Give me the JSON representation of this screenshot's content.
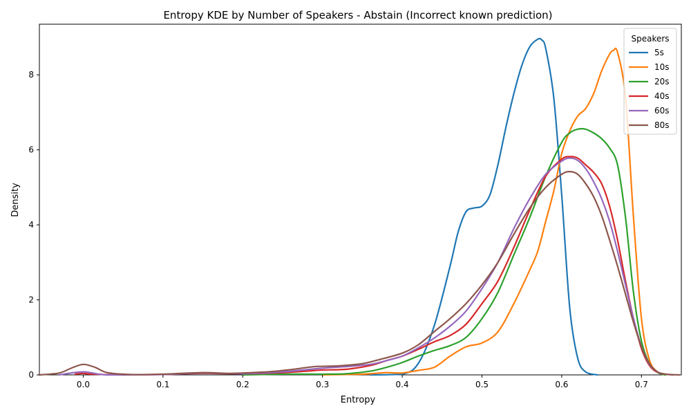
{
  "chart_data": {
    "type": "line",
    "title": "Entropy KDE by Number of Speakers - Abstain (Incorrect known prediction)",
    "xlabel": "Entropy",
    "ylabel": "Density",
    "xlim": [
      -0.055,
      0.75
    ],
    "ylim": [
      0,
      9.35
    ],
    "xticks": [
      0.0,
      0.1,
      0.2,
      0.3,
      0.4,
      0.5,
      0.6,
      0.7
    ],
    "xtick_labels": [
      "0.0",
      "0.1",
      "0.2",
      "0.3",
      "0.4",
      "0.5",
      "0.6",
      "0.7"
    ],
    "yticks": [
      0,
      2,
      4,
      6,
      8
    ],
    "ytick_labels": [
      "0",
      "2",
      "4",
      "6",
      "8"
    ],
    "grid": false,
    "legend": {
      "title": "Speakers",
      "position": "top-right"
    },
    "series": [
      {
        "name": "5s",
        "color": "#1f77b4",
        "x": [
          0.36,
          0.4,
          0.42,
          0.44,
          0.46,
          0.47,
          0.48,
          0.49,
          0.5,
          0.51,
          0.52,
          0.53,
          0.54,
          0.55,
          0.56,
          0.57,
          0.575,
          0.58,
          0.59,
          0.6,
          0.61,
          0.62,
          0.63,
          0.645
        ],
        "y": [
          0.0,
          0.02,
          0.3,
          1.3,
          2.9,
          3.8,
          4.35,
          4.45,
          4.5,
          4.8,
          5.6,
          6.6,
          7.5,
          8.25,
          8.75,
          8.95,
          8.93,
          8.7,
          7.4,
          4.8,
          1.8,
          0.45,
          0.08,
          0.0
        ]
      },
      {
        "name": "10s",
        "color": "#ff7f0e",
        "x": [
          0.3,
          0.35,
          0.38,
          0.4,
          0.42,
          0.44,
          0.46,
          0.48,
          0.5,
          0.52,
          0.54,
          0.56,
          0.57,
          0.58,
          0.59,
          0.6,
          0.61,
          0.62,
          0.63,
          0.64,
          0.65,
          0.66,
          0.665,
          0.67,
          0.68,
          0.69,
          0.7,
          0.71,
          0.72,
          0.73
        ],
        "y": [
          0.0,
          0.02,
          0.06,
          0.05,
          0.12,
          0.2,
          0.5,
          0.75,
          0.85,
          1.15,
          1.9,
          2.8,
          3.3,
          4.1,
          4.9,
          5.9,
          6.5,
          6.9,
          7.1,
          7.5,
          8.1,
          8.55,
          8.65,
          8.6,
          7.4,
          4.2,
          1.5,
          0.4,
          0.08,
          0.0
        ]
      },
      {
        "name": "20s",
        "color": "#2ca02c",
        "x": [
          0.2,
          0.25,
          0.3,
          0.33,
          0.36,
          0.38,
          0.4,
          0.42,
          0.44,
          0.46,
          0.48,
          0.5,
          0.52,
          0.54,
          0.56,
          0.58,
          0.6,
          0.61,
          0.62,
          0.63,
          0.64,
          0.65,
          0.66,
          0.67,
          0.68,
          0.69,
          0.7,
          0.71,
          0.72,
          0.73
        ],
        "y": [
          0.0,
          0.02,
          0.02,
          0.03,
          0.1,
          0.2,
          0.33,
          0.5,
          0.65,
          0.78,
          1.0,
          1.5,
          2.2,
          3.2,
          4.2,
          5.3,
          6.2,
          6.45,
          6.55,
          6.55,
          6.45,
          6.3,
          6.05,
          5.6,
          4.2,
          2.2,
          0.9,
          0.3,
          0.07,
          0.0
        ]
      },
      {
        "name": "40s",
        "color": "#d62728",
        "x": [
          -0.01,
          0.0,
          0.01,
          0.05,
          0.1,
          0.15,
          0.2,
          0.25,
          0.28,
          0.3,
          0.33,
          0.36,
          0.38,
          0.4,
          0.42,
          0.44,
          0.46,
          0.48,
          0.5,
          0.52,
          0.54,
          0.56,
          0.58,
          0.6,
          0.61,
          0.62,
          0.63,
          0.64,
          0.65,
          0.66,
          0.67,
          0.68,
          0.69,
          0.7,
          0.71,
          0.72,
          0.73,
          0.74
        ],
        "y": [
          0.02,
          0.04,
          0.02,
          0.0,
          0.01,
          0.04,
          0.03,
          0.06,
          0.1,
          0.13,
          0.15,
          0.25,
          0.38,
          0.5,
          0.68,
          0.88,
          1.05,
          1.35,
          1.9,
          2.5,
          3.4,
          4.4,
          5.3,
          5.75,
          5.82,
          5.78,
          5.6,
          5.4,
          5.1,
          4.5,
          3.6,
          2.5,
          1.5,
          0.7,
          0.25,
          0.07,
          0.02,
          0.0
        ]
      },
      {
        "name": "60s",
        "color": "#9467bd",
        "x": [
          -0.03,
          0.0,
          0.03,
          0.1,
          0.15,
          0.2,
          0.25,
          0.3,
          0.33,
          0.36,
          0.38,
          0.4,
          0.42,
          0.44,
          0.46,
          0.48,
          0.5,
          0.52,
          0.54,
          0.56,
          0.58,
          0.6,
          0.61,
          0.62,
          0.63,
          0.64,
          0.65,
          0.66,
          0.67,
          0.68,
          0.69,
          0.7,
          0.71,
          0.72,
          0.73,
          0.74
        ],
        "y": [
          0.0,
          0.08,
          0.0,
          0.01,
          0.05,
          0.03,
          0.08,
          0.18,
          0.22,
          0.28,
          0.38,
          0.5,
          0.72,
          0.98,
          1.3,
          1.7,
          2.3,
          3.0,
          3.9,
          4.7,
          5.35,
          5.7,
          5.78,
          5.72,
          5.5,
          5.15,
          4.7,
          4.1,
          3.3,
          2.4,
          1.5,
          0.75,
          0.28,
          0.08,
          0.02,
          0.0
        ]
      },
      {
        "name": "80s",
        "color": "#8c564b",
        "x": [
          -0.055,
          -0.03,
          -0.015,
          0.0,
          0.015,
          0.03,
          0.06,
          0.1,
          0.15,
          0.18,
          0.2,
          0.23,
          0.26,
          0.29,
          0.32,
          0.35,
          0.37,
          0.4,
          0.42,
          0.44,
          0.46,
          0.48,
          0.5,
          0.52,
          0.54,
          0.56,
          0.58,
          0.6,
          0.61,
          0.62,
          0.63,
          0.64,
          0.65,
          0.66,
          0.67,
          0.68,
          0.69,
          0.7,
          0.71,
          0.72,
          0.73,
          0.748
        ],
        "y": [
          0.0,
          0.05,
          0.18,
          0.28,
          0.2,
          0.06,
          0.01,
          0.02,
          0.06,
          0.04,
          0.05,
          0.08,
          0.14,
          0.22,
          0.24,
          0.3,
          0.4,
          0.58,
          0.8,
          1.15,
          1.5,
          1.9,
          2.4,
          3.0,
          3.75,
          4.45,
          5.0,
          5.35,
          5.42,
          5.35,
          5.1,
          4.75,
          4.25,
          3.6,
          2.9,
          2.15,
          1.4,
          0.75,
          0.3,
          0.08,
          0.02,
          0.0
        ]
      }
    ]
  }
}
